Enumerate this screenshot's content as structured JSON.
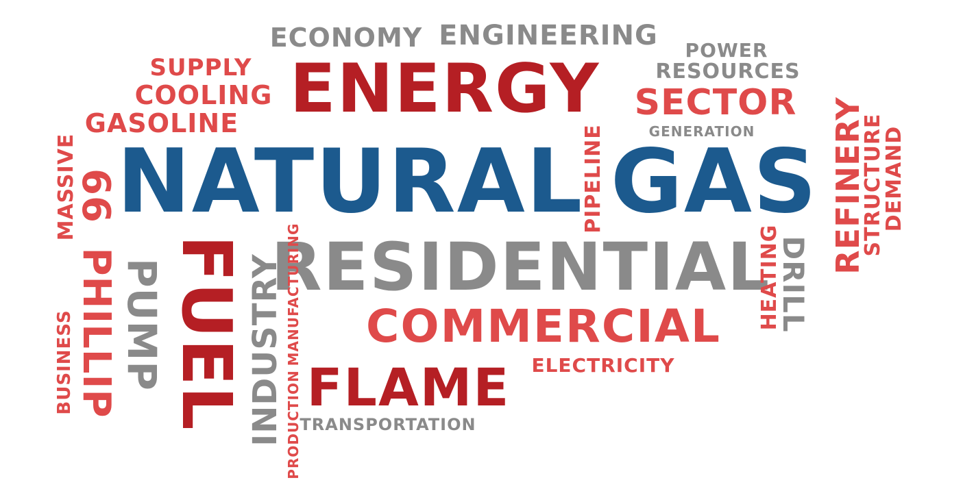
{
  "colors": {
    "red": "#b51f24",
    "light_red": "#df4a4a",
    "gray": "#8a8a8a",
    "blue": "#1c5a8e",
    "background": "#ffffff"
  },
  "words": {
    "economy": "ECONOMY",
    "engineering": "ENGINEERING",
    "power": "POWER",
    "resources": "RESOURCES",
    "energy": "ENERGY",
    "supply": "SUPPLY",
    "cooling": "COOLING",
    "gasoline": "GASOLINE",
    "sector": "SECTOR",
    "generation": "GENERATION",
    "natural": "NATURAL",
    "gas": "GAS",
    "pipeline": "PIPELINE",
    "refinery": "REFINERY",
    "structure": "STRUCTURE",
    "demand": "DEMAND",
    "massive": "MASSIVE",
    "sixty_six": "66",
    "residential": "RESIDENTIAL",
    "heating": "HEATING",
    "drill": "DRILL",
    "phillip": "PHILLIP",
    "pump": "PUMP",
    "fuel": "FUEL",
    "industry": "INDUSTRY",
    "manufacturing": "MANUFACTURING",
    "commercial": "COMMERCIAL",
    "electricity": "ELECTRICITY",
    "business": "BUSINESS",
    "flame": "FLAME",
    "transportation": "TRANSPORTATION",
    "production": "PRODUCTION"
  }
}
